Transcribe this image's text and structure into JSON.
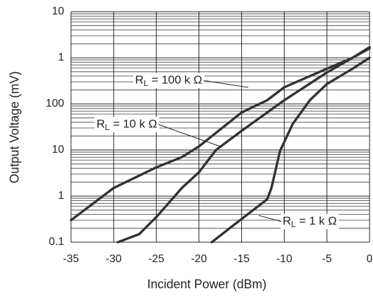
{
  "chart_data": {
    "type": "line",
    "x_label": "Incident Power (dBm)",
    "y_label": "Output Voltage (mV)",
    "log_y": true,
    "grid": true,
    "xlim": [
      -35,
      0
    ],
    "xticks": [
      -35,
      -30,
      -25,
      -20,
      -15,
      -10,
      -5,
      0
    ],
    "ylim": [
      0.1,
      10000
    ],
    "yticks": [
      0.1,
      1,
      10,
      100,
      {
        "value": 1000,
        "label": "1"
      },
      {
        "value": 10000,
        "label": "10"
      }
    ],
    "series": [
      {
        "name": "R",
        "subscript": "L",
        "name_suffix": " = 100 k Ω",
        "color": "#333333",
        "x": [
          -35,
          -30,
          -25,
          -22,
          -20,
          -15,
          -12,
          -10,
          -5,
          -2,
          0
        ],
        "values": [
          0.3,
          1.5,
          4.2,
          7,
          12,
          65,
          120,
          230,
          580,
          1000,
          1700
        ]
      },
      {
        "name": "R",
        "subscript": "L",
        "name_suffix": " = 10 k Ω",
        "color": "#333333",
        "x": [
          -29.5,
          -27,
          -26,
          -25,
          -22,
          -20,
          -18,
          -15,
          -10,
          -5,
          -2,
          0
        ],
        "values": [
          0.1,
          0.15,
          0.23,
          0.35,
          1.5,
          3.3,
          10,
          26,
          120,
          480,
          1000,
          1600
        ]
      },
      {
        "name": "R",
        "subscript": "L",
        "name_suffix": " = 1 k Ω",
        "color": "#333333",
        "x": [
          -18.5,
          -15,
          -12,
          -11.5,
          -10.5,
          -9,
          -7,
          -5,
          -2,
          0
        ],
        "values": [
          0.1,
          0.32,
          0.85,
          1.5,
          9.5,
          37,
          120,
          270,
          580,
          1000
        ]
      }
    ]
  }
}
